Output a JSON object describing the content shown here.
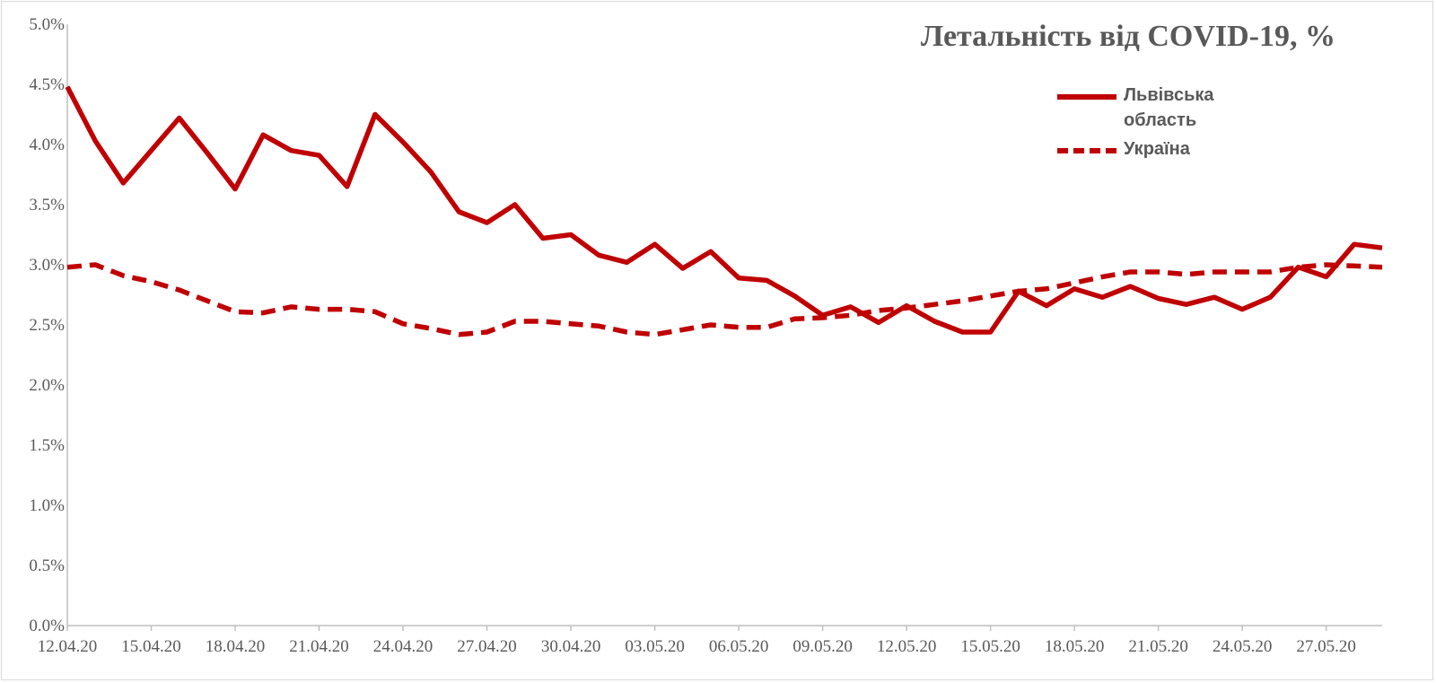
{
  "colors": {
    "series": "#c00000",
    "axis": "#bfbfbf",
    "text": "#595959"
  },
  "chart_data": {
    "type": "line",
    "title": "Летальність від COVID-19, %",
    "xlabel": "",
    "ylabel": "",
    "ylim": [
      0,
      5
    ],
    "y_tick_labels": [
      "0.0%",
      "0.5%",
      "1.0%",
      "1.5%",
      "2.0%",
      "2.5%",
      "3.0%",
      "3.5%",
      "4.0%",
      "4.5%",
      "5.0%"
    ],
    "y_ticks": [
      0,
      0.5,
      1.0,
      1.5,
      2.0,
      2.5,
      3.0,
      3.5,
      4.0,
      4.5,
      5.0
    ],
    "grid": false,
    "legend_position": "top-right",
    "x": [
      "12.04.20",
      "13.04.20",
      "14.04.20",
      "15.04.20",
      "16.04.20",
      "17.04.20",
      "18.04.20",
      "19.04.20",
      "20.04.20",
      "21.04.20",
      "22.04.20",
      "23.04.20",
      "24.04.20",
      "25.04.20",
      "26.04.20",
      "27.04.20",
      "28.04.20",
      "29.04.20",
      "30.04.20",
      "01.05.20",
      "02.05.20",
      "03.05.20",
      "04.05.20",
      "05.05.20",
      "06.05.20",
      "07.05.20",
      "08.05.20",
      "09.05.20",
      "10.05.20",
      "11.05.20",
      "12.05.20",
      "13.05.20",
      "14.05.20",
      "15.05.20",
      "16.05.20",
      "17.05.20",
      "18.05.20",
      "19.05.20",
      "20.05.20",
      "21.05.20",
      "22.05.20",
      "23.05.20",
      "24.05.20",
      "25.05.20",
      "26.05.20",
      "27.05.20",
      "28.05.20",
      "29.05.20"
    ],
    "x_tick_labels": [
      "12.04.20",
      "15.04.20",
      "18.04.20",
      "21.04.20",
      "24.04.20",
      "27.04.20",
      "30.04.20",
      "03.05.20",
      "06.05.20",
      "09.05.20",
      "12.05.20",
      "15.05.20",
      "18.05.20",
      "21.05.20",
      "24.05.20",
      "27.05.20"
    ],
    "series": [
      {
        "name": "Львівська область",
        "style": "solid",
        "values": [
          4.48,
          4.03,
          3.68,
          3.95,
          4.22,
          3.93,
          3.63,
          4.08,
          3.95,
          3.91,
          3.65,
          4.25,
          4.02,
          3.77,
          3.44,
          3.35,
          3.5,
          3.22,
          3.25,
          3.08,
          3.02,
          3.17,
          2.97,
          3.11,
          2.89,
          2.87,
          2.74,
          2.58,
          2.65,
          2.52,
          2.66,
          2.53,
          2.44,
          2.44,
          2.78,
          2.66,
          2.8,
          2.73,
          2.82,
          2.72,
          2.67,
          2.73,
          2.63,
          2.73,
          2.98,
          2.9,
          3.17,
          3.14
        ]
      },
      {
        "name": "Україна",
        "style": "dashed",
        "values": [
          2.98,
          3.0,
          2.91,
          2.86,
          2.79,
          2.7,
          2.61,
          2.6,
          2.65,
          2.63,
          2.63,
          2.61,
          2.51,
          2.47,
          2.42,
          2.44,
          2.53,
          2.53,
          2.51,
          2.49,
          2.44,
          2.42,
          2.46,
          2.5,
          2.48,
          2.48,
          2.55,
          2.56,
          2.58,
          2.62,
          2.64,
          2.67,
          2.7,
          2.74,
          2.78,
          2.8,
          2.85,
          2.9,
          2.94,
          2.94,
          2.92,
          2.94,
          2.94,
          2.94,
          2.98,
          3.0,
          2.99,
          2.98
        ]
      }
    ]
  }
}
